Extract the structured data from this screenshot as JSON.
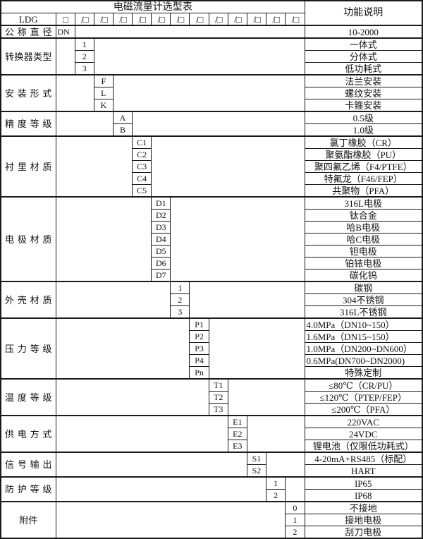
{
  "header": {
    "title": "电磁流量计选型表",
    "function_column": "功能说明"
  },
  "model_row": {
    "prefix": "LDG",
    "box": "□",
    "slot": "/□",
    "slot_count": 12
  },
  "colors": {
    "border": "#1a1a1a",
    "background": "#ffffff",
    "text": "#111111"
  },
  "sections": [
    {
      "label": "公称直径",
      "rows": [
        {
          "code": "DN",
          "desc": "10-2000"
        }
      ]
    },
    {
      "label": "转换器类型",
      "rows": [
        {
          "code": "1",
          "desc": "一体式"
        },
        {
          "code": "2",
          "desc": "分体式"
        },
        {
          "code": "3",
          "desc": "低功耗式"
        }
      ]
    },
    {
      "label": "安装形式",
      "rows": [
        {
          "code": "F",
          "desc": "法兰安装"
        },
        {
          "code": "L",
          "desc": "螺纹安装"
        },
        {
          "code": "K",
          "desc": "卡箍安装"
        }
      ]
    },
    {
      "label": "精度等级",
      "rows": [
        {
          "code": "A",
          "desc": "0.5级"
        },
        {
          "code": "B",
          "desc": "1.0级"
        }
      ]
    },
    {
      "label": "衬里材质",
      "rows": [
        {
          "code": "C1",
          "desc": "氯丁橡胶（CR）"
        },
        {
          "code": "C2",
          "desc": "聚氨酯橡胶（PU）"
        },
        {
          "code": "C3",
          "desc": "聚四氟乙烯（F4/PTFE）"
        },
        {
          "code": "C4",
          "desc": "特氟龙（F46/FEP）"
        },
        {
          "code": "C5",
          "desc": "共聚物（PFA）"
        }
      ]
    },
    {
      "label": "电极材质",
      "rows": [
        {
          "code": "D1",
          "desc": "316L电极"
        },
        {
          "code": "D2",
          "desc": "钛合金"
        },
        {
          "code": "D3",
          "desc": "哈B电极"
        },
        {
          "code": "D4",
          "desc": "哈C电极"
        },
        {
          "code": "D5",
          "desc": "钽电极"
        },
        {
          "code": "D6",
          "desc": "铂铱电极"
        },
        {
          "code": "D7",
          "desc": "碳化钨"
        }
      ]
    },
    {
      "label": "外壳材质",
      "rows": [
        {
          "code": "1",
          "desc": "碳钢"
        },
        {
          "code": "2",
          "desc": "304不锈钢"
        },
        {
          "code": "3",
          "desc": "316L不锈钢"
        }
      ]
    },
    {
      "label": "压力等级",
      "rows": [
        {
          "code": "P1",
          "desc": "4.0MPa（DN10~150）"
        },
        {
          "code": "P2",
          "desc": "1.6MPa（DN15~150）"
        },
        {
          "code": "P3",
          "desc": "1.0MPa（DN200~DN600）"
        },
        {
          "code": "P4",
          "desc": "0.6MPa(DN700~DN2000)"
        },
        {
          "code": "Pn",
          "desc": "特殊定制"
        }
      ]
    },
    {
      "label": "温度等级",
      "rows": [
        {
          "code": "T1",
          "desc": "≤80℃（CR/PU）"
        },
        {
          "code": "T2",
          "desc": "≤120℃（PTEP/FEP）"
        },
        {
          "code": "T3",
          "desc": "≤200℃（PFA）"
        }
      ]
    },
    {
      "label": "供电方式",
      "rows": [
        {
          "code": "E1",
          "desc": "220VAC"
        },
        {
          "code": "E2",
          "desc": "24VDC"
        },
        {
          "code": "E3",
          "desc": "锂电池（仅限低功耗式）"
        }
      ]
    },
    {
      "label": "信号输出",
      "rows": [
        {
          "code": "S1",
          "desc": "4-20mA+RS485（标配）"
        },
        {
          "code": "S2",
          "desc": "HART"
        }
      ]
    },
    {
      "label": "防护等级",
      "rows": [
        {
          "code": "1",
          "desc": "IP65"
        },
        {
          "code": "2",
          "desc": "IP68"
        }
      ]
    },
    {
      "label": "附件",
      "rows": [
        {
          "code": "0",
          "desc": "不接地"
        },
        {
          "code": "1",
          "desc": "接地电极"
        },
        {
          "code": "2",
          "desc": "刮刀电极"
        }
      ]
    }
  ]
}
